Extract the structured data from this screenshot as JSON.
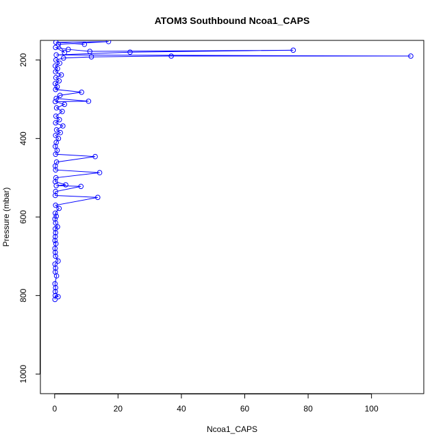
{
  "chart_data": {
    "type": "line",
    "title": "ATOM3 Southbound Ncoa1_CAPS",
    "xlabel": "Ncoa1_CAPS",
    "ylabel": "Pressure (mbar)",
    "xlim": [
      -4.5,
      116.5
    ],
    "ylim": [
      1050,
      150
    ],
    "y_reversed": true,
    "xticks": [
      0,
      20,
      40,
      60,
      80,
      100
    ],
    "yticks": [
      200,
      400,
      600,
      800,
      1000
    ],
    "grid": false,
    "marker": "open-circle",
    "series": [
      {
        "color": "#0000ff",
        "points": [
          [
            0.1,
            810
          ],
          [
            0.2,
            800
          ],
          [
            1.1,
            803
          ],
          [
            0.2,
            790
          ],
          [
            0.3,
            780
          ],
          [
            0.1,
            770
          ],
          [
            0.6,
            750
          ],
          [
            0.2,
            740
          ],
          [
            0.3,
            730
          ],
          [
            0.1,
            720
          ],
          [
            1.1,
            712
          ],
          [
            0.3,
            700
          ],
          [
            0.2,
            690
          ],
          [
            0.1,
            680
          ],
          [
            0.4,
            668
          ],
          [
            0.1,
            660
          ],
          [
            0.2,
            650
          ],
          [
            0.3,
            640
          ],
          [
            0.2,
            630
          ],
          [
            0.9,
            625
          ],
          [
            0.3,
            615
          ],
          [
            0.1,
            605
          ],
          [
            0.5,
            598
          ],
          [
            0.2,
            590
          ],
          [
            1.4,
            578
          ],
          [
            0.3,
            570
          ],
          [
            13.6,
            550
          ],
          [
            0.2,
            545
          ],
          [
            0.3,
            535
          ],
          [
            8.3,
            522
          ],
          [
            0.5,
            520
          ],
          [
            3.5,
            518
          ],
          [
            0.2,
            510
          ],
          [
            0.4,
            500
          ],
          [
            14.2,
            487
          ],
          [
            0.3,
            480
          ],
          [
            0.2,
            470
          ],
          [
            0.6,
            460
          ],
          [
            12.8,
            446
          ],
          [
            0.3,
            440
          ],
          [
            0.8,
            430
          ],
          [
            0.2,
            420
          ],
          [
            0.5,
            410
          ],
          [
            1.2,
            400
          ],
          [
            0.3,
            392
          ],
          [
            1.8,
            385
          ],
          [
            0.6,
            378
          ],
          [
            2.6,
            368
          ],
          [
            0.3,
            360
          ],
          [
            1.5,
            352
          ],
          [
            0.4,
            343
          ],
          [
            2.4,
            331
          ],
          [
            0.6,
            322
          ],
          [
            3.1,
            313
          ],
          [
            0.2,
            306
          ],
          [
            10.7,
            305
          ],
          [
            0.5,
            298
          ],
          [
            1.7,
            290
          ],
          [
            8.5,
            282
          ],
          [
            0.3,
            275
          ],
          [
            0.8,
            268
          ],
          [
            0.2,
            260
          ],
          [
            1.4,
            253
          ],
          [
            0.4,
            245
          ],
          [
            2.1,
            238
          ],
          [
            0.3,
            230
          ],
          [
            0.9,
            222
          ],
          [
            0.2,
            215
          ],
          [
            1.6,
            208
          ],
          [
            0.4,
            200
          ],
          [
            2.8,
            195
          ],
          [
            11.6,
            192
          ],
          [
            36.8,
            190
          ],
          [
            112.4,
            190
          ],
          [
            0.5,
            187
          ],
          [
            23.8,
            180
          ],
          [
            75.3,
            175
          ],
          [
            11.1,
            178
          ],
          [
            4.3,
            173
          ],
          [
            0.3,
            168
          ],
          [
            3.1,
            181
          ],
          [
            1.2,
            160
          ],
          [
            17.0,
            153
          ],
          [
            0.4,
            155
          ],
          [
            9.4,
            160
          ]
        ]
      }
    ]
  }
}
